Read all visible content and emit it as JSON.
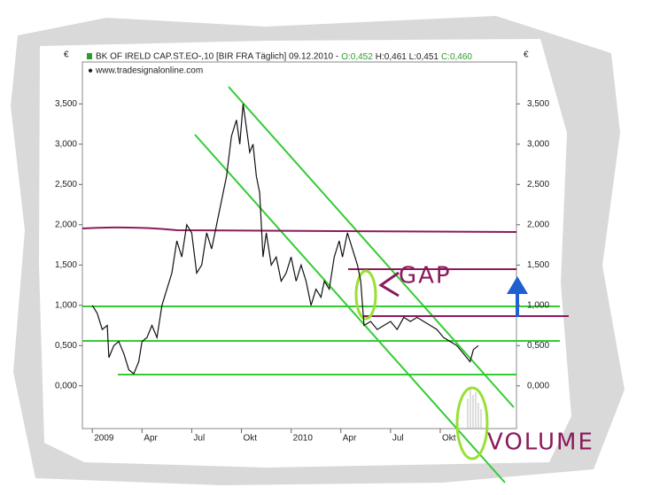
{
  "chart_data": {
    "type": "line",
    "title": "BK OF IRELD CAP.ST.EO-,10 [BIR FRA  Täglich] 09.12.2010 -",
    "open_label": "O:0,452",
    "high_low_label": "H:0,461 L:0,451",
    "close_label": "C:0,460",
    "subtitle": "www.tradesignalonline.com",
    "unit": "€",
    "color": "#111111",
    "label_color": "#2a9d2a",
    "annotations": [
      "GAP",
      "VOLUME"
    ],
    "x": [
      0,
      0.3,
      0.6,
      0.9,
      1.0,
      1.3,
      1.6,
      1.9,
      2.2,
      2.5,
      2.8,
      3.0,
      3.3,
      3.6,
      3.9,
      4.2,
      4.5,
      4.8,
      5.1,
      5.4,
      5.7,
      6.0,
      6.3,
      6.6,
      6.9,
      7.2,
      7.5,
      7.8,
      8.1,
      8.4,
      8.7,
      8.9,
      9.1,
      9.3,
      9.5,
      9.7,
      9.9,
      10.1,
      10.3,
      10.5,
      10.8,
      11.1,
      11.4,
      11.7,
      12.0,
      12.3,
      12.6,
      12.9,
      13.2,
      13.5,
      13.8,
      14.0,
      14.3,
      14.6,
      14.9,
      15.1,
      15.4,
      15.7,
      16.0,
      16.2,
      16.4,
      16.8,
      17.2,
      17.6,
      18.0,
      18.4,
      18.8,
      19.2,
      19.6,
      20.0,
      20.4,
      20.8,
      21.2,
      21.6,
      22.0,
      22.4,
      22.8,
      23.0,
      23.3
    ],
    "values": [
      1.0,
      0.9,
      0.7,
      0.75,
      0.35,
      0.5,
      0.55,
      0.4,
      0.2,
      0.15,
      0.3,
      0.55,
      0.6,
      0.75,
      0.6,
      1.0,
      1.2,
      1.4,
      1.8,
      1.6,
      2.0,
      1.9,
      1.4,
      1.5,
      1.9,
      1.7,
      2.0,
      2.3,
      2.6,
      3.1,
      3.3,
      3.0,
      3.5,
      3.2,
      2.9,
      3.0,
      2.6,
      2.4,
      1.6,
      1.9,
      1.5,
      1.6,
      1.3,
      1.4,
      1.6,
      1.3,
      1.5,
      1.3,
      1.0,
      1.2,
      1.1,
      1.3,
      1.2,
      1.6,
      1.8,
      1.6,
      1.9,
      1.7,
      1.5,
      1.3,
      0.75,
      0.8,
      0.7,
      0.75,
      0.8,
      0.7,
      0.85,
      0.8,
      0.85,
      0.8,
      0.75,
      0.7,
      0.6,
      0.55,
      0.5,
      0.4,
      0.3,
      0.45,
      0.5
    ],
    "xlim": [
      -0.6,
      25.6
    ],
    "xticks": [
      {
        "value": 0,
        "label": "2009"
      },
      {
        "value": 3,
        "label": "Apr"
      },
      {
        "value": 6,
        "label": "Jul"
      },
      {
        "value": 9,
        "label": "Okt"
      },
      {
        "value": 12,
        "label": "2010"
      },
      {
        "value": 15,
        "label": "Apr"
      },
      {
        "value": 18,
        "label": "Jul"
      },
      {
        "value": 21,
        "label": "Okt"
      }
    ],
    "ylim": [
      -0.53,
      4.02
    ],
    "yticks": [
      {
        "value": 0,
        "label": "0,000"
      },
      {
        "value": 0.5,
        "label": "0,500"
      },
      {
        "value": 1,
        "label": "1,000"
      },
      {
        "value": 1.5,
        "label": "1,500"
      },
      {
        "value": 2,
        "label": "2,000"
      },
      {
        "value": 2.5,
        "label": "2,500"
      },
      {
        "value": 3,
        "label": "3,000"
      },
      {
        "value": 3.5,
        "label": "3,500"
      }
    ]
  }
}
